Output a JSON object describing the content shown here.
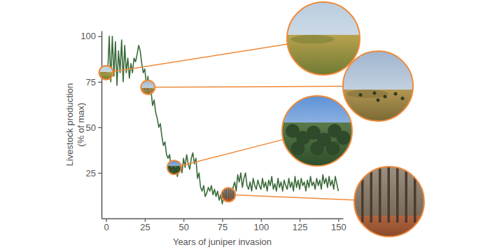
{
  "chart_data": {
    "type": "line",
    "x_label": "Years of juniper invasion",
    "y_label": "Livestock production\n(% of max)",
    "x": [
      0,
      1,
      2,
      3,
      4,
      5,
      6,
      7,
      8,
      9,
      10,
      11,
      12,
      13,
      14,
      15,
      16,
      17,
      18,
      19,
      20,
      21,
      22,
      23,
      24,
      25,
      26,
      27,
      28,
      29,
      30,
      31,
      32,
      33,
      34,
      35,
      36,
      37,
      38,
      39,
      40,
      41,
      42,
      43,
      44,
      45,
      46,
      47,
      48,
      49,
      50,
      51,
      52,
      53,
      54,
      55,
      56,
      57,
      58,
      59,
      60,
      61,
      62,
      63,
      64,
      65,
      66,
      67,
      68,
      69,
      70,
      71,
      72,
      73,
      74,
      75,
      76,
      77,
      78,
      79,
      80,
      81,
      82,
      83,
      84,
      85,
      86,
      87,
      88,
      89,
      90,
      91,
      92,
      93,
      94,
      95,
      96,
      97,
      98,
      99,
      100,
      101,
      102,
      103,
      104,
      105,
      106,
      107,
      108,
      109,
      110,
      111,
      112,
      113,
      114,
      115,
      116,
      117,
      118,
      119,
      120,
      121,
      122,
      123,
      124,
      125,
      126,
      127,
      128,
      129,
      130,
      131,
      132,
      133,
      134,
      135,
      136,
      137,
      138,
      139,
      140,
      141,
      142,
      143,
      144,
      145,
      146,
      147,
      148,
      149,
      150
    ],
    "series": [
      {
        "color": "#3b6b3a",
        "values": [
          78,
          80,
          100,
          75,
          100,
          78,
          97,
          73,
          92,
          80,
          98,
          75,
          95,
          80,
          88,
          77,
          85,
          80,
          88,
          86,
          90,
          95,
          92,
          85,
          80,
          82,
          73,
          78,
          68,
          70,
          62,
          65,
          58,
          55,
          50,
          52,
          45,
          40,
          42,
          35,
          33,
          35,
          28,
          30,
          25,
          28,
          23,
          27,
          30,
          25,
          33,
          28,
          35,
          30,
          27,
          33,
          36,
          30,
          33,
          22,
          25,
          17,
          15,
          18,
          12,
          14,
          17,
          15,
          18,
          13,
          16,
          12,
          15,
          10,
          13,
          8,
          12,
          14,
          10,
          12,
          15,
          13,
          17,
          20,
          15,
          24,
          20,
          25,
          17,
          22,
          25,
          18,
          16,
          20,
          15,
          22,
          18,
          16,
          21,
          18,
          16,
          22,
          17,
          20,
          15,
          21,
          18,
          23,
          16,
          19,
          15,
          22,
          17,
          20,
          15,
          21,
          18,
          16,
          22,
          17,
          20,
          15,
          23,
          17,
          21,
          16,
          22,
          18,
          20,
          15,
          21,
          17,
          23,
          18,
          20,
          16,
          22,
          18,
          21,
          16,
          24,
          19,
          22,
          17,
          23,
          18,
          21,
          16,
          23,
          19,
          15
        ]
      }
    ],
    "highlights": [
      {
        "x": 0,
        "y": 80
      },
      {
        "x": 27,
        "y": 72
      },
      {
        "x": 44,
        "y": 28
      },
      {
        "x": 79,
        "y": 13
      }
    ],
    "highlight_color": "#ef8a3a",
    "xlim": [
      -3,
      153
    ],
    "xticks": [
      0,
      25,
      50,
      75,
      100,
      125,
      150
    ],
    "ylim": [
      0,
      103
    ],
    "yticks": [
      25,
      50,
      75,
      100
    ]
  }
}
